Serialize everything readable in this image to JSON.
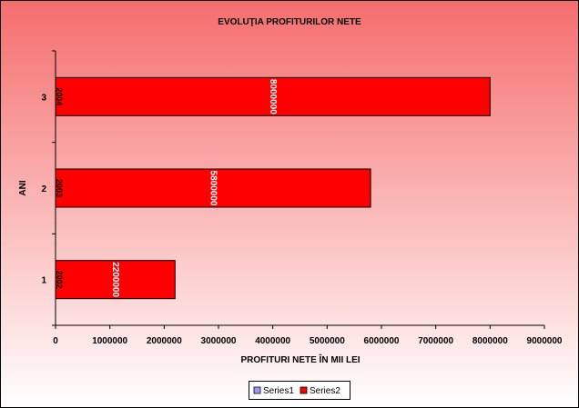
{
  "colors": {
    "background_top": "#f56d6d",
    "background_bottom": "#ffffff",
    "series1": "#9999ff",
    "series2": "#ff0000",
    "border": "#000000"
  },
  "chart_data": {
    "type": "bar",
    "orientation": "horizontal",
    "title": "EVOLUŢIA PROFITURILOR NETE",
    "xlabel": "PROFITURI NETE ÎN MII LEI",
    "ylabel": "ANI",
    "categories": [
      "1",
      "2",
      "3"
    ],
    "series": [
      {
        "name": "Series1",
        "color": "#9999ff",
        "values": [
          2002,
          2003,
          2004
        ],
        "labels": [
          "2002",
          "2003",
          "2004"
        ]
      },
      {
        "name": "Series2",
        "color": "#ff0000",
        "values": [
          2200000,
          5800000,
          8000000
        ],
        "labels": [
          "2200000",
          "5800000",
          "8000000"
        ]
      }
    ],
    "xlim": [
      0,
      9000000
    ],
    "xticks": [
      0,
      1000000,
      2000000,
      3000000,
      4000000,
      5000000,
      6000000,
      7000000,
      8000000,
      9000000
    ],
    "xtick_labels": [
      "0",
      "1000000",
      "2000000",
      "3000000",
      "4000000",
      "5000000",
      "6000000",
      "7000000",
      "8000000",
      "9000000"
    ],
    "grid": false,
    "legend": {
      "position": "bottom",
      "entries": [
        "Series1",
        "Series2"
      ]
    }
  }
}
